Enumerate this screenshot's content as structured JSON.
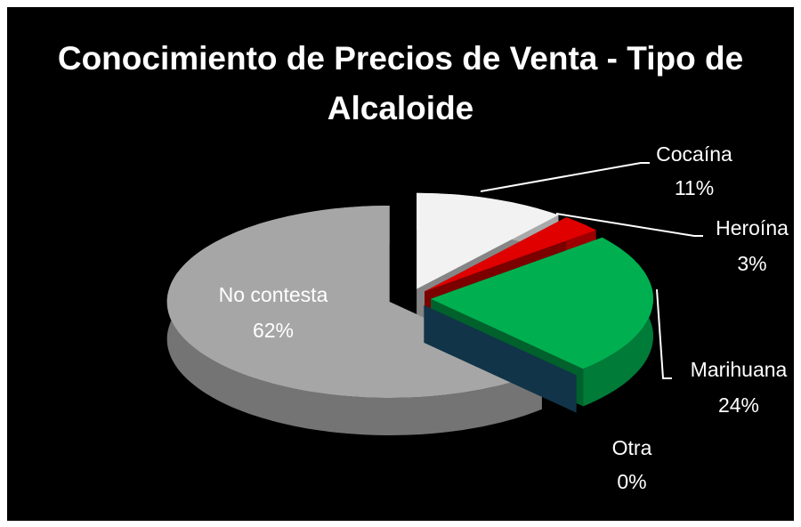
{
  "chart_data": {
    "type": "pie",
    "title": "Conocimiento de Precios de Venta - Tipo de Alcaloide",
    "categories": [
      "Cocaína",
      "Heroína",
      "Marihuana",
      "Otra",
      "No contesta"
    ],
    "values": [
      11,
      3,
      24,
      0,
      62
    ],
    "value_labels": [
      "11%",
      "3%",
      "24%",
      "0%",
      "62%"
    ],
    "colors": [
      "#f2f2f2",
      "#e00000",
      "#00b050",
      "#1f5f82",
      "#a6a6a6"
    ]
  }
}
